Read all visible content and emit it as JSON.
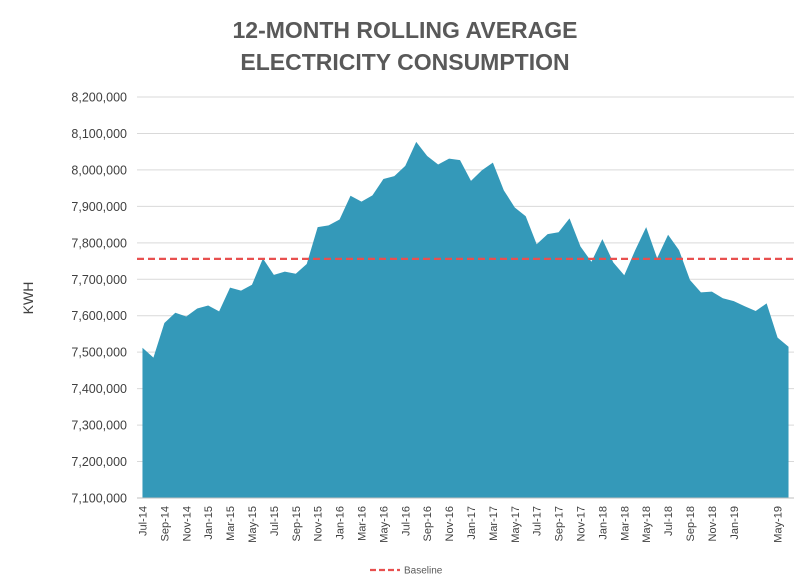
{
  "chart_data": {
    "type": "area",
    "title": [
      "12-MONTH ROLLING AVERAGE",
      "ELECTRICITY CONSUMPTION"
    ],
    "xlabel": "",
    "ylabel": "KWH",
    "ylim": [
      7100000,
      8200000
    ],
    "yticks": [
      7100000,
      7200000,
      7300000,
      7400000,
      7500000,
      7600000,
      7700000,
      7800000,
      7900000,
      8000000,
      8100000,
      8200000
    ],
    "x": [
      "Jul-14",
      "Aug-14",
      "Sep-14",
      "Oct-14",
      "Nov-14",
      "Dec-14",
      "Jan-15",
      "Feb-15",
      "Mar-15",
      "Apr-15",
      "May-15",
      "Jun-15",
      "Jul-15",
      "Aug-15",
      "Sep-15",
      "Oct-15",
      "Nov-15",
      "Dec-15",
      "Jan-16",
      "Feb-16",
      "Mar-16",
      "Apr-16",
      "May-16",
      "Jun-16",
      "Jul-16",
      "Aug-16",
      "Sep-16",
      "Oct-16",
      "Nov-16",
      "Dec-16",
      "Jan-17",
      "Feb-17",
      "Mar-17",
      "Apr-17",
      "May-17",
      "Jun-17",
      "Jul-17",
      "Aug-17",
      "Sep-17",
      "Oct-17",
      "Nov-17",
      "Dec-17",
      "Jan-18",
      "Feb-18",
      "Mar-18",
      "Apr-18",
      "May-18",
      "Jun-18",
      "Jul-18",
      "Aug-18",
      "Sep-18",
      "Oct-18",
      "Nov-18",
      "Dec-18",
      "Jan-19",
      "Feb-19",
      "Mar-19",
      "Apr-19",
      "May-19",
      "Jun-19"
    ],
    "xtick_labels": [
      "Jul-14",
      "Sep-14",
      "Nov-14",
      "Jan-15",
      "Mar-15",
      "May-15",
      "Jul-15",
      "Sep-15",
      "Nov-15",
      "Jan-16",
      "Mar-16",
      "May-16",
      "Jul-16",
      "Sep-16",
      "Nov-16",
      "Jan-17",
      "Mar-17",
      "May-17",
      "Jul-17",
      "Sep-17",
      "Nov-17",
      "Jan-18",
      "Mar-18",
      "May-18",
      "Jul-18",
      "Sep-18",
      "Nov-18",
      "Jan-19",
      "May-19"
    ],
    "series": [
      {
        "values": [
          7512000,
          7485000,
          7580000,
          7608000,
          7598000,
          7620000,
          7628000,
          7612000,
          7677000,
          7669000,
          7685000,
          7757000,
          7712000,
          7721000,
          7715000,
          7742000,
          7843000,
          7848000,
          7864000,
          7929000,
          7913000,
          7930000,
          7975000,
          7983000,
          8011000,
          8077000,
          8038000,
          8015000,
          8031000,
          8027000,
          7970000,
          7999000,
          8020000,
          7944000,
          7897000,
          7873000,
          7796000,
          7824000,
          7829000,
          7867000,
          7790000,
          7748000,
          7810000,
          7746000,
          7711000,
          7780000,
          7843000,
          7758000,
          7822000,
          7780000,
          7698000,
          7664000,
          7666000,
          7648000,
          7640000,
          7626000,
          7613000,
          7634000,
          7540000,
          7515000
        ],
        "color": "#3499b9"
      }
    ],
    "baseline": {
      "name": "Baseline",
      "value": 7756000,
      "color": "#e8504f"
    },
    "grid": true,
    "legend": "bottom"
  }
}
